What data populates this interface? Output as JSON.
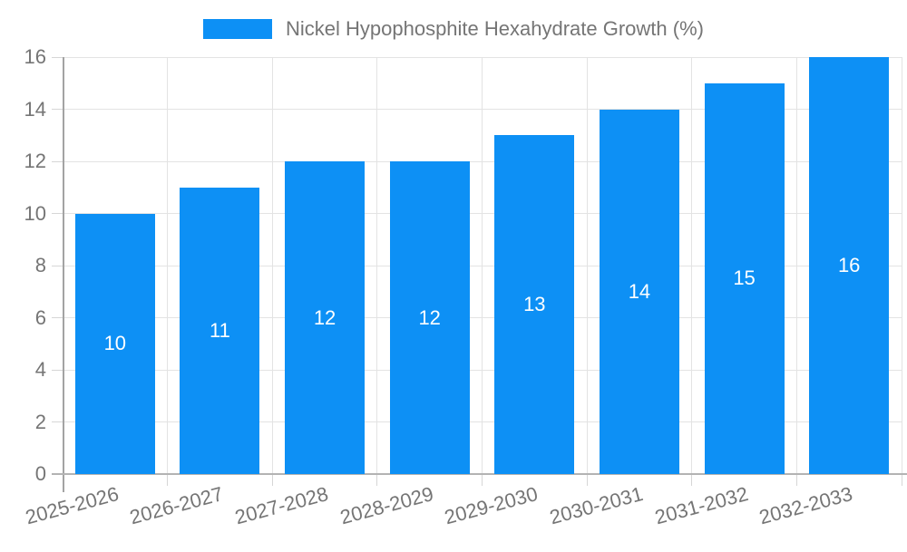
{
  "chart_data": {
    "type": "bar",
    "title": "",
    "legend": "Nickel Hypophosphite Hexahydrate Growth (%)",
    "legend_position": "top-center",
    "categories": [
      "2025-2026",
      "2026-2027",
      "2027-2028",
      "2028-2029",
      "2029-2030",
      "2030-2031",
      "2031-2032",
      "2032-2033"
    ],
    "values": [
      10,
      11,
      12,
      12,
      13,
      14,
      15,
      16
    ],
    "xlabel": "",
    "ylabel": "",
    "ylim": [
      0,
      16
    ],
    "ytick_step": 2,
    "yticks": [
      0,
      2,
      4,
      6,
      8,
      10,
      12,
      14,
      16
    ],
    "grid": true,
    "x_label_rotation_deg": -15,
    "colors": {
      "bar": "#0D90F5",
      "grid": "#e3e3e3",
      "tick": "#d6d6d6",
      "y_spine": "#a3a3a3",
      "x_spine": "#b3b3b3",
      "tick_text": "#757575",
      "legend_text": "#757575",
      "value_text": "#ffffff",
      "background": "#ffffff"
    }
  }
}
